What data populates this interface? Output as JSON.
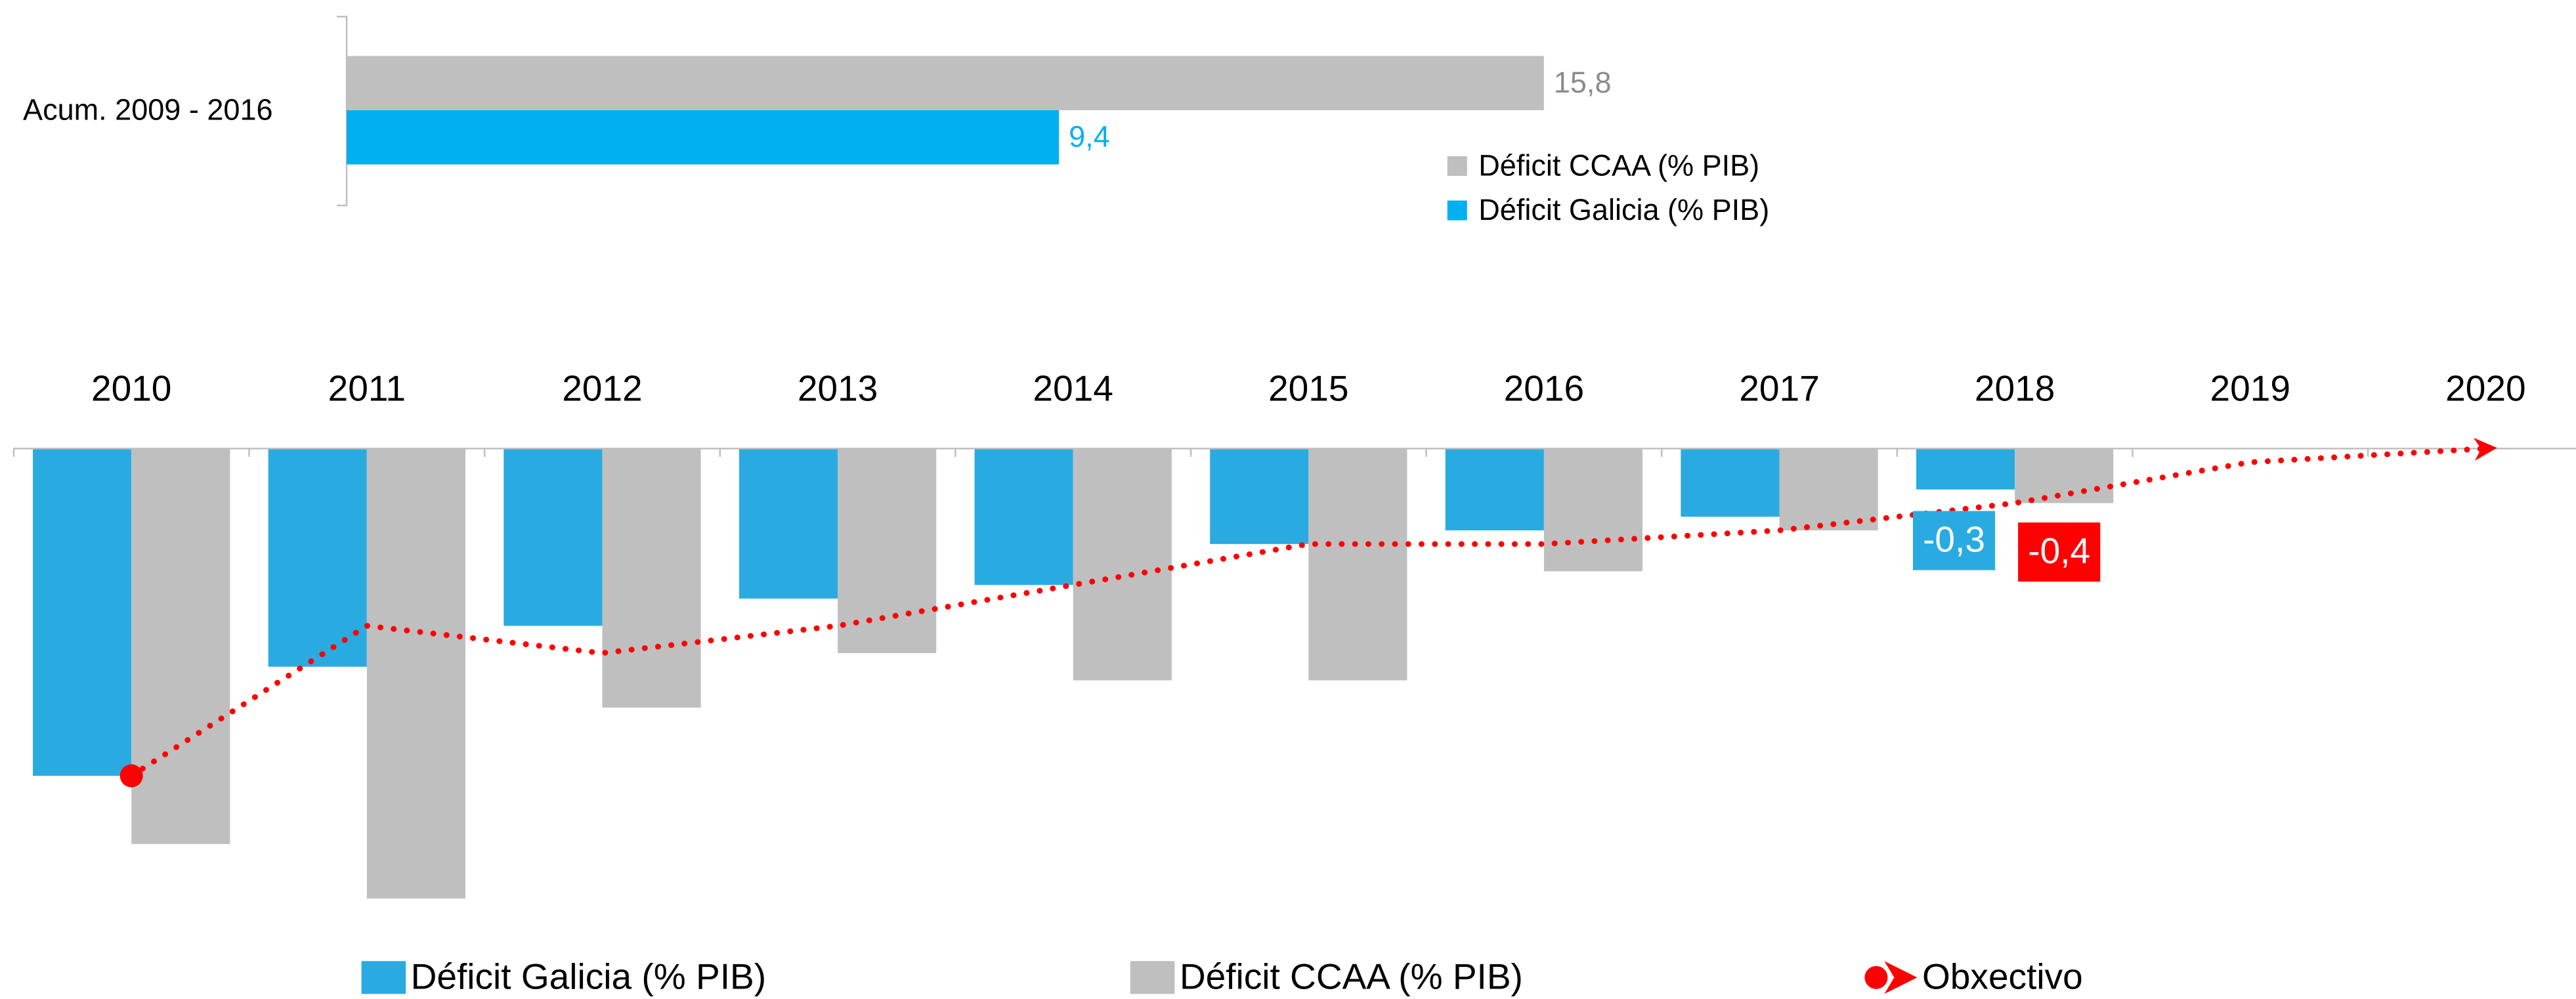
{
  "chart_data": [
    {
      "type": "bar",
      "orientation": "horizontal",
      "categories": [
        "Acum. 2009 - 2016"
      ],
      "series": [
        {
          "name": "Déficit CCAA (% PIB)",
          "color": "#bfbfbf",
          "values": [
            15.8
          ],
          "value_labels": [
            "15,8"
          ]
        },
        {
          "name": "Déficit Galicia (% PIB)",
          "color": "#00b0f0",
          "values": [
            9.4
          ],
          "value_labels": [
            "9,4"
          ]
        }
      ],
      "xlim": [
        0,
        16
      ]
    },
    {
      "type": "bar",
      "categories": [
        "2010",
        "2011",
        "2012",
        "2013",
        "2014",
        "2015",
        "2016",
        "2017",
        "2018",
        "2019",
        "2020"
      ],
      "series": [
        {
          "name": "Déficit Galicia (% PIB)",
          "color": "#29abe2",
          "values": [
            -2.4,
            -1.6,
            -1.3,
            -1.1,
            -1.0,
            -0.7,
            -0.6,
            -0.5,
            -0.3,
            null,
            null
          ],
          "value_labels": [
            null,
            null,
            null,
            null,
            null,
            null,
            null,
            null,
            "-0,3",
            null,
            null
          ]
        },
        {
          "name": "Déficit CCAA (% PIB)",
          "color": "#bfbfbf",
          "values": [
            -2.9,
            -3.3,
            -1.9,
            -1.5,
            -1.7,
            -1.7,
            -0.9,
            -0.6,
            -0.4,
            null,
            null
          ]
        },
        {
          "name": "Obxectivo",
          "type": "line",
          "color": "#ff0000",
          "values": [
            -2.4,
            -1.3,
            -1.5,
            -1.3,
            -1.0,
            -0.7,
            -0.7,
            -0.6,
            -0.4,
            -0.1,
            0
          ],
          "value_labels": [
            null,
            null,
            null,
            null,
            null,
            null,
            null,
            null,
            "-0,4",
            null,
            null
          ]
        }
      ],
      "ylim": [
        -3.5,
        0
      ]
    }
  ]
}
